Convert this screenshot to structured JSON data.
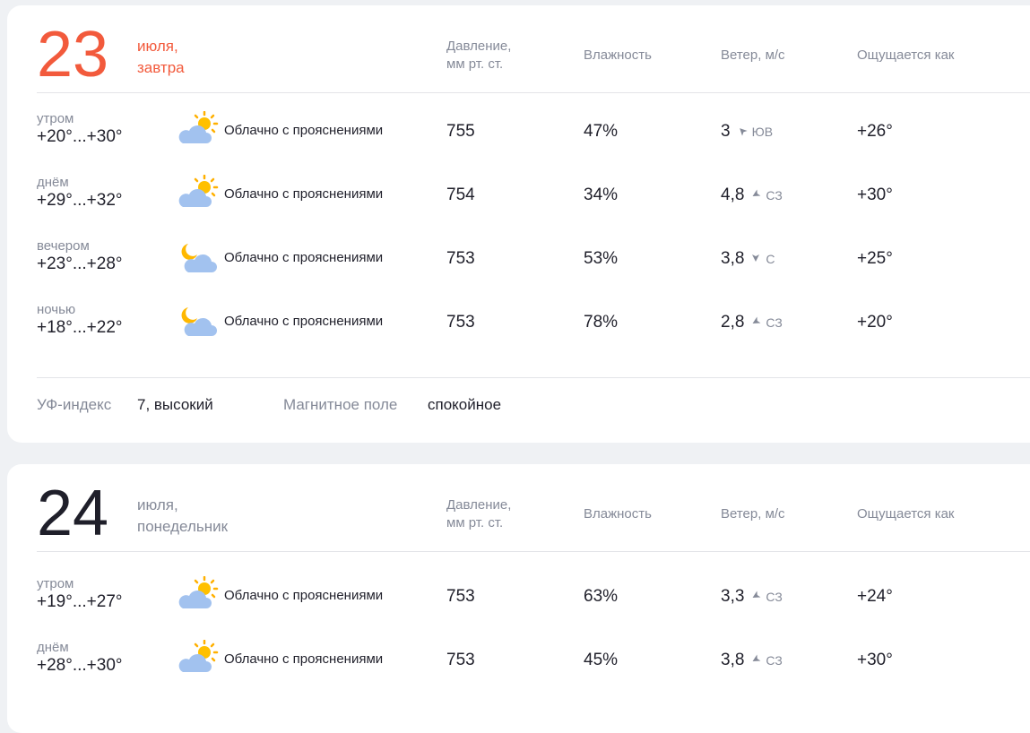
{
  "days": [
    {
      "day": "23",
      "month": "июля,",
      "weekday": "завтра",
      "accent": "#f25a3c",
      "columns": {
        "pressure": "Давление,",
        "pressure_unit": "мм рт. ст.",
        "humidity": "Влажность",
        "wind": "Ветер, м/с",
        "feels": "Ощущается как"
      },
      "rows": [
        {
          "part": "утром",
          "temp": "+20°...+30°",
          "icon": "partly-cloudy-day-icon",
          "condition": "Облачно с прояснениями",
          "pressure": "755",
          "humidity": "47%",
          "wind": "3",
          "wind_dir": "ЮВ",
          "rot": 135,
          "feels": "+26°"
        },
        {
          "part": "днём",
          "temp": "+29°...+32°",
          "icon": "partly-cloudy-day-icon",
          "condition": "Облачно с прояснениями",
          "pressure": "754",
          "humidity": "34%",
          "wind": "4,8",
          "wind_dir": "СЗ",
          "rot": 60,
          "feels": "+30°"
        },
        {
          "part": "вечером",
          "temp": "+23°...+28°",
          "icon": "partly-cloudy-night-icon",
          "condition": "Облачно с прояснениями",
          "pressure": "753",
          "humidity": "53%",
          "wind": "3,8",
          "wind_dir": "С",
          "rot": 0,
          "feels": "+25°"
        },
        {
          "part": "ночью",
          "temp": "+18°...+22°",
          "icon": "partly-cloudy-night-icon",
          "condition": "Облачно с прояснениями",
          "pressure": "753",
          "humidity": "78%",
          "wind": "2,8",
          "wind_dir": "СЗ",
          "rot": 60,
          "feels": "+20°"
        }
      ],
      "uv_label": "УФ-индекс",
      "uv_value": "7, высокий",
      "magnetic_label": "Магнитное поле",
      "magnetic_value": "спокойное"
    },
    {
      "day": "24",
      "month": "июля,",
      "weekday": "понедельник",
      "accent": "#858a98",
      "columns": {
        "pressure": "Давление,",
        "pressure_unit": "мм рт. ст.",
        "humidity": "Влажность",
        "wind": "Ветер, м/с",
        "feels": "Ощущается как"
      },
      "rows": [
        {
          "part": "утром",
          "temp": "+19°...+27°",
          "icon": "partly-cloudy-day-icon",
          "condition": "Облачно с прояснениями",
          "pressure": "753",
          "humidity": "63%",
          "wind": "3,3",
          "wind_dir": "СЗ",
          "rot": 60,
          "feels": "+24°"
        },
        {
          "part": "днём",
          "temp": "+28°...+30°",
          "icon": "partly-cloudy-day-icon",
          "condition": "Облачно с прояснениями",
          "pressure": "753",
          "humidity": "45%",
          "wind": "3,8",
          "wind_dir": "СЗ",
          "rot": 60,
          "feels": "+30°"
        }
      ]
    }
  ]
}
